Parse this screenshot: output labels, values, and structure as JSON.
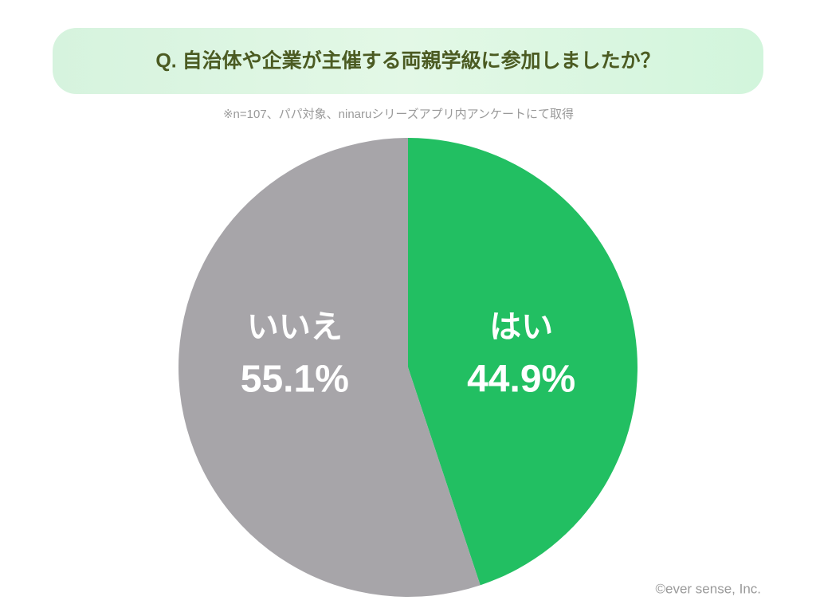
{
  "chart_data": {
    "type": "pie",
    "title": "Q. 自治体や企業が主催する両親学級に参加しましたか？",
    "subtitle": "※n=107、パパ対象、ninaruシリーズアプリ内アンケートにて取得",
    "categories": [
      "はい",
      "いいえ"
    ],
    "values": [
      44.9,
      55.1
    ],
    "value_labels": [
      "44.9%",
      "55.1%"
    ],
    "colors": [
      "#22bf62",
      "#a7a5a9"
    ],
    "credit": "©ever sense, Inc."
  }
}
